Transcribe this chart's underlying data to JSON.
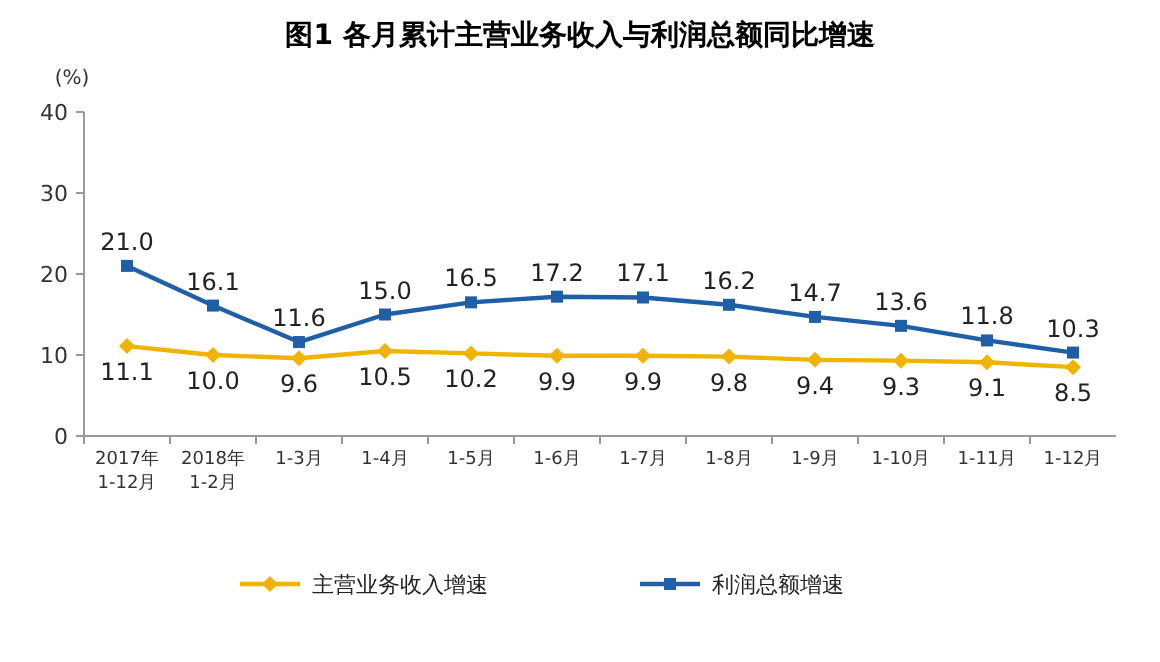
{
  "chart_data": {
    "type": "line",
    "title": "图1  各月累计主营业务收入与利润总额同比增速",
    "ylabel": "(%)",
    "categories": [
      "2017年\n1-12月",
      "2018年\n1-2月",
      "1-3月",
      "1-4月",
      "1-5月",
      "1-6月",
      "1-7月",
      "1-8月",
      "1-9月",
      "1-10月",
      "1-11月",
      "1-12月"
    ],
    "series": [
      {
        "name": "主营业务收入增速",
        "color": "#f0b400",
        "marker": "diamond",
        "values": [
          11.1,
          10.0,
          9.6,
          10.5,
          10.2,
          9.9,
          9.9,
          9.8,
          9.4,
          9.3,
          9.1,
          8.5
        ],
        "value_labels": [
          "11.1",
          "10.0",
          "9.6",
          "10.5",
          "10.2",
          "9.9",
          "9.9",
          "9.8",
          "9.4",
          "9.3",
          "9.1",
          "8.5"
        ]
      },
      {
        "name": "利润总额增速",
        "color": "#1f5fa8",
        "marker": "square",
        "values": [
          21.0,
          16.1,
          11.6,
          15.0,
          16.5,
          17.2,
          17.1,
          16.2,
          14.7,
          13.6,
          11.8,
          10.3
        ],
        "value_labels": [
          "21.0",
          "16.1",
          "11.6",
          "15.0",
          "16.5",
          "17.2",
          "17.1",
          "16.2",
          "14.7",
          "13.6",
          "11.8",
          "10.3"
        ]
      }
    ],
    "ylim": [
      0,
      40
    ],
    "yticks": [
      0,
      10,
      20,
      30,
      40
    ],
    "legend": "bottom",
    "grid": false
  }
}
